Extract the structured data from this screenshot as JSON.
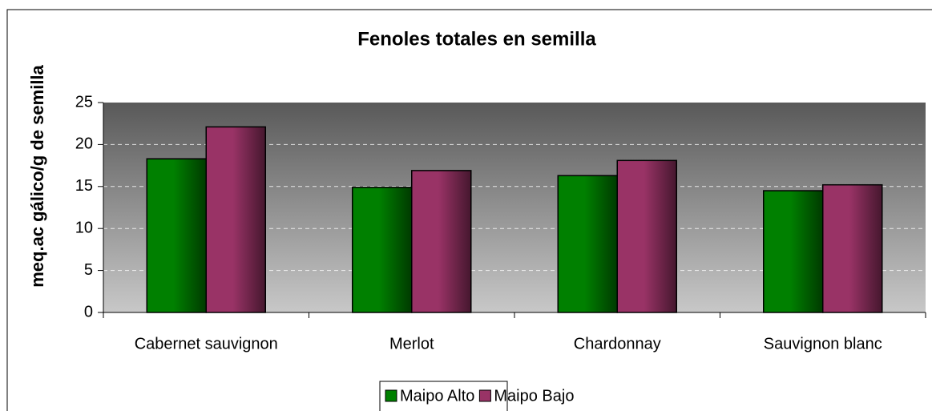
{
  "chart_data": {
    "type": "bar",
    "title": "Fenoles totales en semilla",
    "y_label": "meq.ac gálico/g de semilla",
    "categories": [
      "Cabernet sauvignon",
      "Merlot",
      "Chardonnay",
      "Sauvignon blanc"
    ],
    "series": [
      {
        "name": "Maipo Alto",
        "color": "#008000",
        "values": [
          18.3,
          14.9,
          16.3,
          14.5
        ]
      },
      {
        "name": "Maipo Bajo",
        "color": "#993366",
        "values": [
          22.1,
          16.9,
          18.1,
          15.2
        ]
      }
    ],
    "ylim": [
      0,
      25
    ],
    "yticks": [
      0,
      5,
      10,
      15,
      20,
      25
    ],
    "grid": true,
    "legend": "bottom"
  }
}
